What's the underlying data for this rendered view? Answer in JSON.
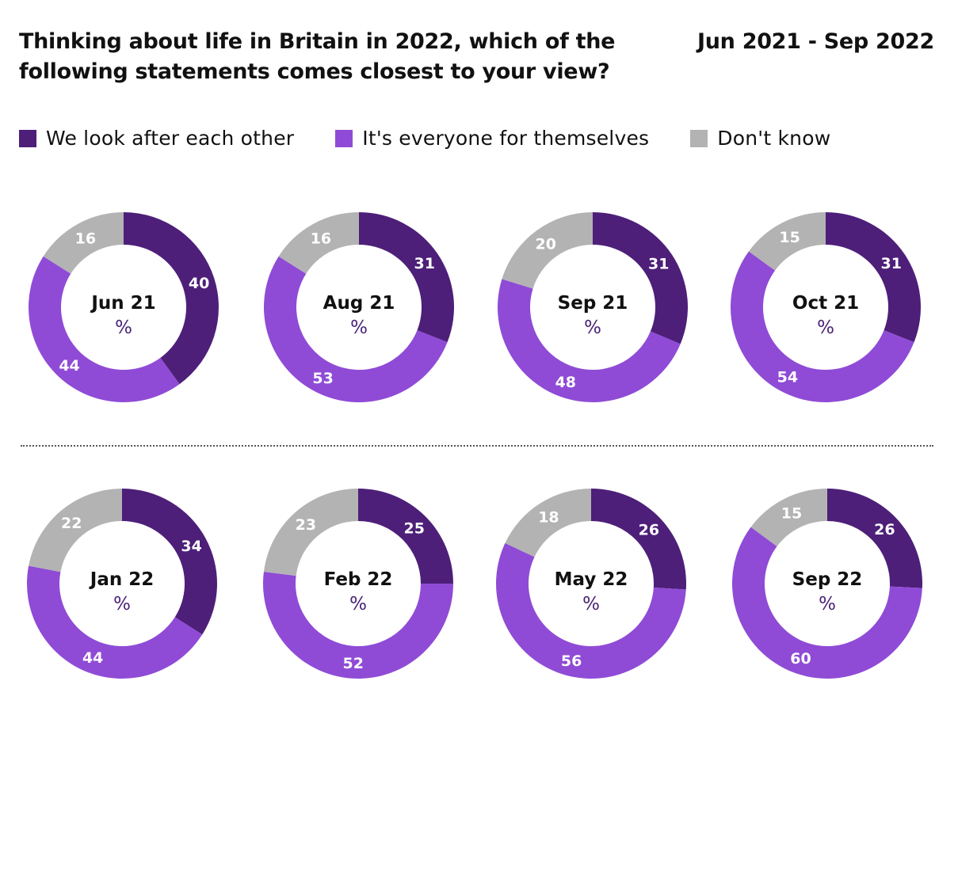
{
  "header": {
    "title_line1": "Thinking about life in Britain in 2022, which of the",
    "title_line2": "following statements comes closest to your view?",
    "date_range": "Jun 2021 - Sep 2022"
  },
  "unit_label": "%",
  "legend": [
    {
      "label": "We look after each other",
      "color": "#4d1f79"
    },
    {
      "label": "It's everyone for themselves",
      "color": "#8f4bd6"
    },
    {
      "label": "Don't know",
      "color": "#b3b3b3"
    }
  ],
  "chart_data": {
    "type": "pie",
    "variant": "donut",
    "title": "Thinking about life in Britain in 2022, which of the following statements comes closest to your view?",
    "subtitle": "Jun 2021 - Sep 2022",
    "unit": "%",
    "series_names": [
      "We look after each other",
      "It's everyone for themselves",
      "Don't know"
    ],
    "colors": [
      "#4d1f79",
      "#8f4bd6",
      "#b3b3b3"
    ],
    "legend_position": "top-left",
    "charts": [
      {
        "label": "Jun 21",
        "values": [
          40,
          44,
          16
        ]
      },
      {
        "label": "Aug 21",
        "values": [
          31,
          53,
          16
        ]
      },
      {
        "label": "Sep 21",
        "values": [
          31,
          48,
          20
        ]
      },
      {
        "label": "Oct 21",
        "values": [
          31,
          54,
          15
        ]
      },
      {
        "label": "Jan 22",
        "values": [
          34,
          44,
          22
        ]
      },
      {
        "label": "Feb 22",
        "values": [
          25,
          52,
          23
        ]
      },
      {
        "label": "May 22",
        "values": [
          26,
          56,
          18
        ]
      },
      {
        "label": "Sep 22",
        "values": [
          26,
          60,
          15
        ]
      }
    ]
  }
}
